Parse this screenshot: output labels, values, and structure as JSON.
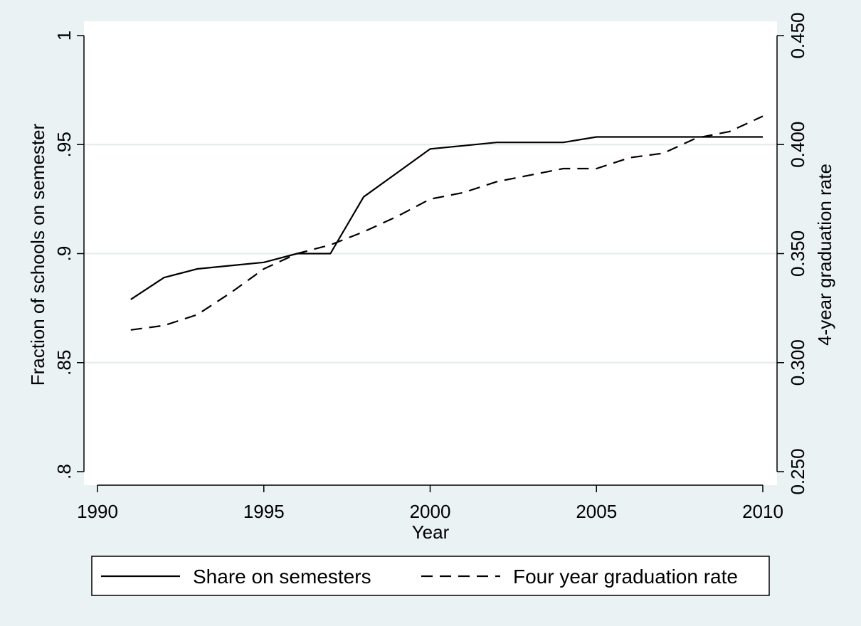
{
  "chart_data": {
    "type": "line",
    "xlabel": "Year",
    "ylabel_left": "Fraction of schools on semester",
    "ylabel_right": "4-year graduation rate",
    "xlim": [
      1990,
      2010
    ],
    "ylim_left": [
      0.8,
      1.0
    ],
    "ylim_right": [
      0.25,
      0.45
    ],
    "x_ticks": [
      1990,
      1995,
      2000,
      2005,
      2010
    ],
    "y_left_ticks": [
      {
        "value": 0.8,
        "label": ".8"
      },
      {
        "value": 0.85,
        "label": ".85"
      },
      {
        "value": 0.9,
        "label": ".9"
      },
      {
        "value": 0.95,
        "label": ".95"
      },
      {
        "value": 1.0,
        "label": "1"
      }
    ],
    "y_right_ticks": [
      {
        "value": 0.25,
        "label": "0.250"
      },
      {
        "value": 0.3,
        "label": "0.300"
      },
      {
        "value": 0.35,
        "label": "0.350"
      },
      {
        "value": 0.4,
        "label": "0.400"
      },
      {
        "value": 0.45,
        "label": "0.450"
      }
    ],
    "grid": true,
    "legend_position": "bottom",
    "series": [
      {
        "name": "Share on semesters",
        "axis": "left",
        "style": "solid",
        "x": [
          1991,
          1992,
          1993,
          1994,
          1995,
          1996,
          1997,
          1998,
          1999,
          2000,
          2001,
          2002,
          2003,
          2004,
          2005,
          2006,
          2007,
          2008,
          2009,
          2010
        ],
        "y": [
          0.879,
          0.889,
          0.893,
          0.8945,
          0.896,
          0.9,
          0.9,
          0.926,
          0.937,
          0.948,
          0.9495,
          0.951,
          0.951,
          0.951,
          0.9535,
          0.9535,
          0.9535,
          0.9535,
          0.9535,
          0.9535
        ]
      },
      {
        "name": "Four year graduation rate",
        "axis": "right",
        "style": "dashed",
        "x": [
          1991,
          1992,
          1993,
          1994,
          1995,
          1996,
          1997,
          1998,
          1999,
          2000,
          2001,
          2002,
          2003,
          2004,
          2005,
          2006,
          2007,
          2008,
          2009,
          2010
        ],
        "y": [
          0.315,
          0.317,
          0.322,
          0.332,
          0.343,
          0.35,
          0.354,
          0.36,
          0.367,
          0.375,
          0.378,
          0.383,
          0.386,
          0.389,
          0.389,
          0.394,
          0.396,
          0.403,
          0.406,
          0.413
        ]
      }
    ]
  }
}
